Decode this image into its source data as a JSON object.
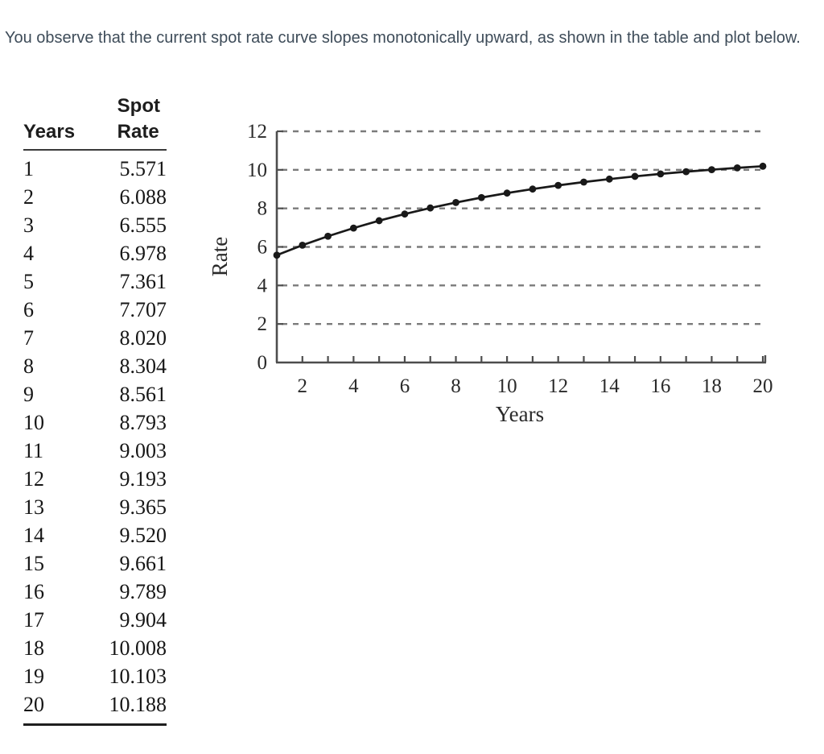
{
  "intro": {
    "text": "You observe that the current spot rate curve slopes monotonically upward, as shown in the table and plot below."
  },
  "table": {
    "col1_header": "Years",
    "col2_header_line1": "Spot",
    "col2_header_line2": "Rate",
    "rows": [
      {
        "year": "1",
        "rate": "5.571"
      },
      {
        "year": "2",
        "rate": "6.088"
      },
      {
        "year": "3",
        "rate": "6.555"
      },
      {
        "year": "4",
        "rate": "6.978"
      },
      {
        "year": "5",
        "rate": "7.361"
      },
      {
        "year": "6",
        "rate": "7.707"
      },
      {
        "year": "7",
        "rate": "8.020"
      },
      {
        "year": "8",
        "rate": "8.304"
      },
      {
        "year": "9",
        "rate": "8.561"
      },
      {
        "year": "10",
        "rate": "8.793"
      },
      {
        "year": "11",
        "rate": "9.003"
      },
      {
        "year": "12",
        "rate": "9.193"
      },
      {
        "year": "13",
        "rate": "9.365"
      },
      {
        "year": "14",
        "rate": "9.520"
      },
      {
        "year": "15",
        "rate": "9.661"
      },
      {
        "year": "16",
        "rate": "9.789"
      },
      {
        "year": "17",
        "rate": "9.904"
      },
      {
        "year": "18",
        "rate": "10.008"
      },
      {
        "year": "19",
        "rate": "10.103"
      },
      {
        "year": "20",
        "rate": "10.188"
      }
    ]
  },
  "chart_data": {
    "type": "line",
    "title": "",
    "xlabel": "Years",
    "ylabel": "Rate",
    "x": [
      1,
      2,
      3,
      4,
      5,
      6,
      7,
      8,
      9,
      10,
      11,
      12,
      13,
      14,
      15,
      16,
      17,
      18,
      19,
      20
    ],
    "series": [
      {
        "name": "Spot Rate",
        "values": [
          5.571,
          6.088,
          6.555,
          6.978,
          7.361,
          7.707,
          8.02,
          8.304,
          8.561,
          8.793,
          9.003,
          9.193,
          9.365,
          9.52,
          9.661,
          9.789,
          9.904,
          10.008,
          10.103,
          10.188
        ]
      }
    ],
    "xlim": [
      1,
      20
    ],
    "ylim": [
      0,
      12
    ],
    "yticks": [
      0,
      2,
      4,
      6,
      8,
      10,
      12
    ],
    "xtick_labels": [
      2,
      4,
      6,
      8,
      10,
      12,
      14,
      16,
      18,
      20
    ],
    "grid": "horizontal-dashed",
    "marker": "circle",
    "legend": "none",
    "colors": {
      "line": "#191919",
      "marker": "#191919",
      "axis": "#4d4d4d",
      "grid": "#7b7b7b",
      "tick_text": "#2a2a2a"
    }
  }
}
